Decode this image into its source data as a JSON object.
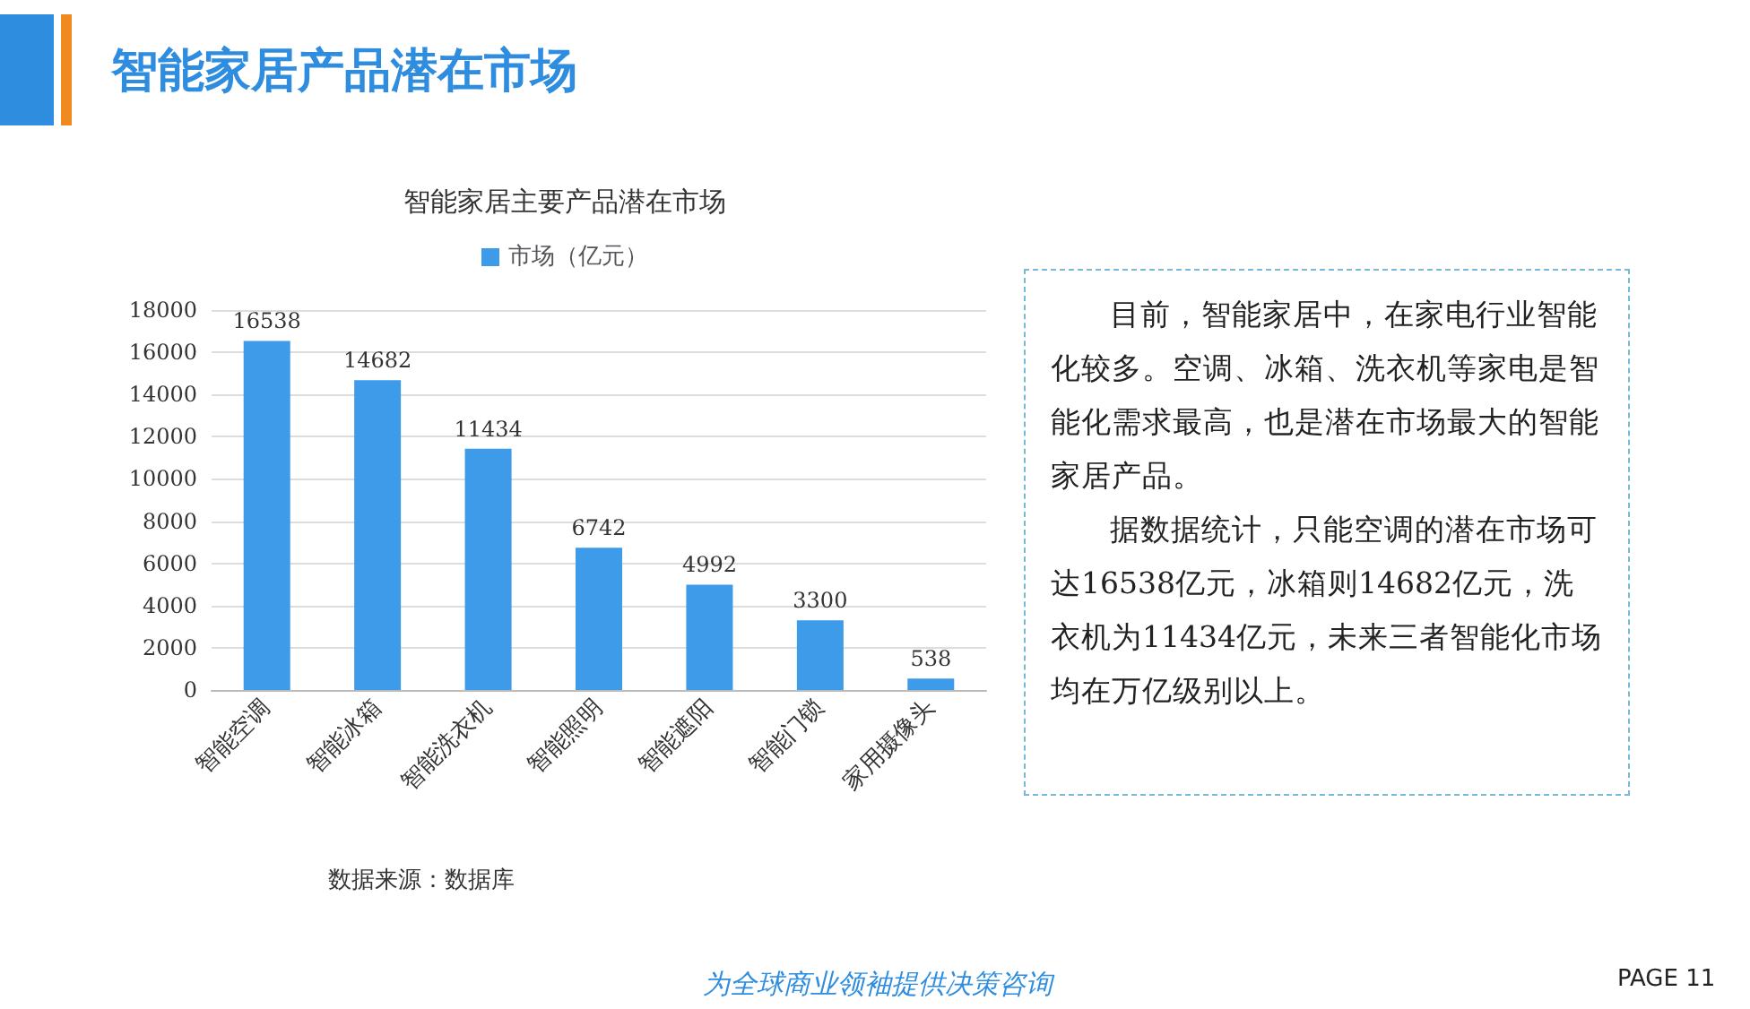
{
  "chart_data": [
    {
      "type": "bar",
      "title": "智能家居主要产品潜在市场",
      "categories": [
        "智能空调",
        "智能冰箱",
        "智能洗衣机",
        "智能照明",
        "智能遮阳",
        "智能门锁",
        "家用摄像头"
      ],
      "series": [
        {
          "name": "市场（亿元）",
          "color": "#3d9be9",
          "values": [
            16538,
            14682,
            11434,
            6742,
            4992,
            3300,
            538
          ]
        }
      ],
      "ylim": [
        0,
        18000
      ],
      "yticks": [
        0,
        2000,
        4000,
        6000,
        8000,
        10000,
        12000,
        14000,
        16000,
        18000
      ],
      "grid": "y",
      "legend": "top",
      "data_labels": true,
      "annotations": [
        "智能家居产品潜在市场",
        "数据来源：数据库",
        "为全球商业领袖提供决策咨询",
        "PAGE  11"
      ]
    },
    {
      "type": "other",
      "annotations": [
        "目前，智能家居中，在家电行业智能化较多。空调、冰箱、洗衣机等家电是智能化需求最高，也是潜在市场最大的智能家居产品。",
        "据数据统计，只能空调的潜在市场可达16538亿元，冰箱则14682亿元，洗衣机为11434亿元，未来三者智能化市场均在万亿级别以上。"
      ]
    }
  ]
}
